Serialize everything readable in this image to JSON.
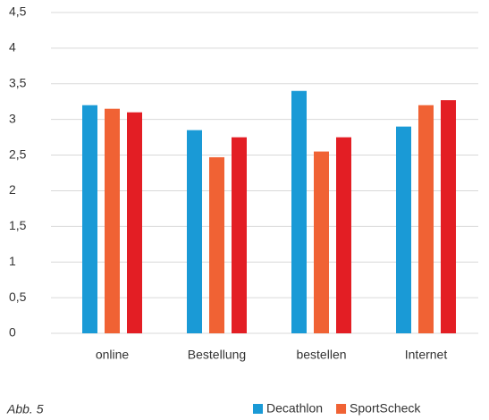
{
  "chart_data": {
    "type": "bar",
    "categories": [
      "online",
      "Bestellung",
      "bestellen",
      "Internet"
    ],
    "series": [
      {
        "name": "Decathlon",
        "color": "#1a9ad6",
        "values": [
          3.2,
          2.85,
          3.4,
          2.9
        ]
      },
      {
        "name": "SportScheck",
        "color": "#f06234",
        "values": [
          3.15,
          2.47,
          2.55,
          3.2
        ]
      },
      {
        "color": "#e31e24",
        "values": [
          3.1,
          2.75,
          2.75,
          3.27
        ]
      }
    ],
    "ylim": [
      0,
      4.5
    ],
    "yticks": [
      0,
      {
        "value": 0.5,
        "label": "0,5"
      },
      1,
      {
        "value": 1.5,
        "label": "1,5"
      },
      2,
      {
        "value": 2.5,
        "label": "2,5"
      },
      3,
      {
        "value": 3.5,
        "label": "3,5"
      },
      4,
      {
        "value": 4.5,
        "label": "4,5"
      }
    ],
    "grid": true,
    "legend": "bottom",
    "footnote": "Abb. 5"
  }
}
